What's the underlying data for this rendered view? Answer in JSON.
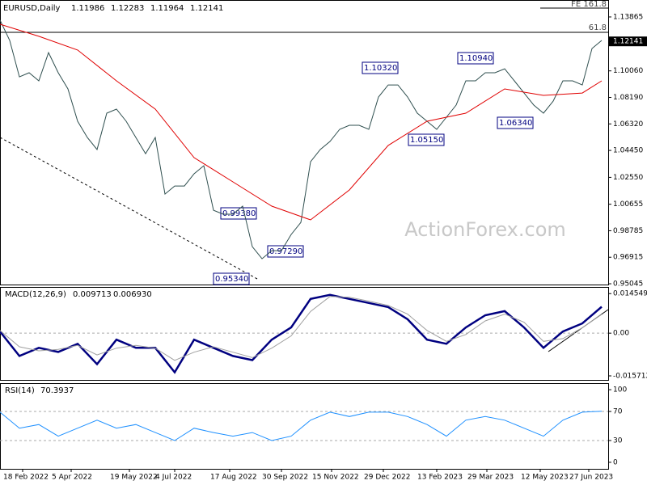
{
  "chart_data": [
    {
      "type": "line",
      "symbol": "EURUSD,Daily",
      "ohlc": [
        1.11986,
        1.12283,
        1.11964,
        1.12141
      ],
      "last_price": 1.12141,
      "x": [
        0,
        6,
        12,
        18,
        24,
        30,
        36,
        42,
        48,
        54,
        60,
        66,
        72,
        78,
        84,
        90,
        96,
        102,
        108,
        114,
        120,
        126,
        132,
        138,
        144,
        150,
        156,
        162,
        168,
        174,
        180,
        186,
        192,
        198,
        204,
        210,
        216,
        222,
        228,
        234,
        240,
        246,
        252,
        258,
        264,
        270,
        276,
        282,
        288,
        294,
        300,
        306,
        312,
        318,
        324,
        330,
        336,
        342,
        348,
        354,
        360,
        366,
        372
      ],
      "series": [
        {
          "color": "#2f4f4f",
          "values": [
            1.1364,
            1.1221,
            1.0964,
            1.0993,
            1.0936,
            1.1135,
            1.0993,
            1.0879,
            1.0651,
            1.0536,
            1.0451,
            1.0708,
            1.0736,
            1.0651,
            1.0536,
            1.0422,
            1.0536,
            1.0137,
            1.0194,
            1.0194,
            1.028,
            1.0337,
            1.0023,
            0.9995,
            0.9995,
            1.0052,
            0.9766,
            0.9681,
            0.9738,
            0.9738,
            0.9852,
            0.9937,
            1.0365,
            1.0451,
            1.0508,
            1.0594,
            1.0622,
            1.0622,
            1.0594,
            1.0822,
            1.0907,
            1.0907,
            1.0822,
            1.0708,
            1.0651,
            1.0594,
            1.0679,
            1.0765,
            1.0936,
            1.0936,
            1.0993,
            1.0993,
            1.1021,
            1.0936,
            1.085,
            1.0765,
            1.0708,
            1.0793,
            1.0936,
            1.0936,
            1.0907,
            1.1164,
            1.1221
          ]
        },
        {
          "color": "#e00000",
          "x": [
            0,
            24,
            48,
            72,
            96,
            120,
            144,
            168,
            192,
            216,
            240,
            264,
            288,
            312,
            336,
            360,
            372
          ],
          "values": [
            1.1335,
            1.125,
            1.1153,
            1.0936,
            1.0736,
            1.0394,
            1.0223,
            1.0052,
            0.9955,
            1.0166,
            1.048,
            1.0651,
            1.0708,
            1.0879,
            1.0833,
            1.085,
            1.0936
          ]
        }
      ],
      "xlim": [
        0,
        376
      ],
      "ylim": [
        0.9499,
        1.1506
      ],
      "yticks": [
        1.13865,
        {
          "value": 1.1006,
          "label": "1.10060"
        },
        {
          "value": 1.0819,
          "label": "1.08190"
        },
        {
          "value": 1.0632,
          "label": "1.06320"
        },
        {
          "value": 1.0445,
          "label": "1.04450"
        },
        {
          "value": 1.0255,
          "label": "1.02550"
        },
        1.00655,
        0.98785,
        0.96915,
        0.95045
      ],
      "levels": [
        "FE 161.8",
        "61.8"
      ],
      "annotations": [
        "1.10320",
        "1.10940",
        "1.05150",
        "1.06340",
        "0.99380",
        "0.97290",
        "0.95340"
      ],
      "watermark": "ActionForex.com"
    },
    {
      "type": "line",
      "title": "MACD(12,26,9)",
      "readout": [
        {
          "value": 0.009713,
          "label": "0.009713"
        },
        {
          "value": 0.00693,
          "label": "0.006930"
        }
      ],
      "x": [
        0,
        12,
        24,
        36,
        48,
        60,
        72,
        84,
        96,
        108,
        120,
        132,
        144,
        156,
        168,
        180,
        192,
        204,
        216,
        228,
        240,
        252,
        264,
        276,
        288,
        300,
        312,
        324,
        336,
        348,
        360,
        372
      ],
      "series": [
        {
          "color": "#000080",
          "values": [
            0.0006,
            -0.0084,
            -0.0054,
            -0.0069,
            -0.0039,
            -0.0114,
            -0.0024,
            -0.0054,
            -0.0054,
            -0.0144,
            -0.0024,
            -0.0054,
            -0.0084,
            -0.0099,
            -0.0024,
            0.0021,
            0.0126,
            0.0141,
            0.0126,
            0.0111,
            0.0096,
            0.0051,
            -0.0024,
            -0.0039,
            0.0021,
            0.0066,
            0.0081,
            0.0021,
            -0.0054,
            0.0006,
            0.0036,
            0.0097
          ]
        },
        {
          "color": "#a0a0a0",
          "values": [
            0.001,
            -0.005,
            -0.0065,
            -0.006,
            -0.0045,
            -0.008,
            -0.0055,
            -0.0045,
            -0.0055,
            -0.01,
            -0.007,
            -0.005,
            -0.007,
            -0.009,
            -0.0055,
            -0.001,
            0.008,
            0.0135,
            0.0132,
            0.0118,
            0.0102,
            0.007,
            0.001,
            -0.003,
            -0.0005,
            0.0045,
            0.007,
            0.004,
            -0.003,
            -0.002,
            0.002,
            0.0069
          ]
        }
      ],
      "xlim": [
        0,
        376
      ],
      "ylim": [
        -0.0172,
        0.017
      ],
      "yticks": [
        0.014549,
        {
          "value": 0,
          "label": "0.00"
        },
        -0.015712
      ]
    },
    {
      "type": "line",
      "title": "RSI(14)",
      "readout": 70.3937,
      "x": [
        0,
        12,
        24,
        36,
        48,
        60,
        72,
        84,
        96,
        108,
        120,
        132,
        144,
        156,
        168,
        180,
        192,
        204,
        216,
        228,
        240,
        252,
        264,
        276,
        288,
        300,
        312,
        324,
        336,
        348,
        360,
        372
      ],
      "series": [
        {
          "color": "#1e90ff",
          "values": [
            69,
            47,
            52,
            36,
            47,
            58,
            47,
            52,
            41,
            30,
            47,
            41,
            36,
            41,
            30,
            36,
            58,
            69,
            63,
            69,
            69,
            63,
            52,
            36,
            58,
            63,
            58,
            47,
            36,
            58,
            69,
            70.4
          ]
        }
      ],
      "xlim": [
        0,
        376
      ],
      "ylim": [
        -9,
        109
      ],
      "yticks": [
        100,
        70,
        30,
        0
      ],
      "xticks": [
        {
          "value": 14,
          "label": "18 Feb 2022"
        },
        {
          "value": 44,
          "label": "5 Apr 2022"
        },
        {
          "value": 80,
          "label": "19 May 2022"
        },
        {
          "value": 108,
          "label": "4 Jul 2022"
        },
        {
          "value": 142,
          "label": "17 Aug 2022"
        },
        {
          "value": 174,
          "label": "30 Sep 2022"
        },
        {
          "value": 205,
          "label": "15 Nov 2022"
        },
        {
          "value": 237,
          "label": "29 Dec 2022"
        },
        {
          "value": 270,
          "label": "13 Feb 2023"
        },
        {
          "value": 301,
          "label": "29 Mar 2023"
        },
        {
          "value": 334,
          "label": "12 May 2023"
        },
        {
          "value": 364,
          "label": "27 Jun 2023"
        }
      ]
    }
  ]
}
